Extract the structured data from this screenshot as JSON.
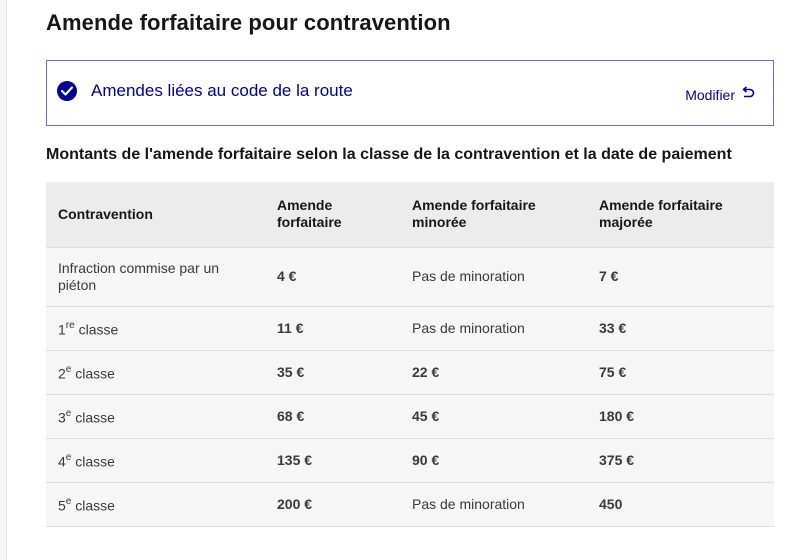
{
  "page": {
    "title": "Amende forfaitaire pour contravention"
  },
  "selection": {
    "label": "Amendes liées au code de la route",
    "modify_label": "Modifier",
    "check_icon": "check-circle-icon",
    "undo_icon": "undo-arrow-icon"
  },
  "table": {
    "caption": "Montants de l'amende forfaitaire selon la classe de la contravention et la date de paiement",
    "headers": [
      "Contravention",
      "Amende forfaitaire",
      "Amende forfaitaire minorée",
      "Amende forfaitaire majorée"
    ],
    "rows": [
      {
        "label_main": "Infraction commise par un piéton",
        "label_sup": "",
        "label_rest": "",
        "amende": "4 €",
        "minoree": "Pas de minoration",
        "majoree": "7 €"
      },
      {
        "label_main": "1",
        "label_sup": "re",
        "label_rest": " classe",
        "amende": "11 €",
        "minoree": "Pas de minoration",
        "majoree": "33 €"
      },
      {
        "label_main": "2",
        "label_sup": "e",
        "label_rest": " classe",
        "amende": "35 €",
        "minoree": "22 €",
        "majoree": "75 €"
      },
      {
        "label_main": "3",
        "label_sup": "e",
        "label_rest": " classe",
        "amende": "68 €",
        "minoree": "45 €",
        "majoree": "180 €"
      },
      {
        "label_main": "4",
        "label_sup": "e",
        "label_rest": " classe",
        "amende": "135 €",
        "minoree": "90 €",
        "majoree": "375 €"
      },
      {
        "label_main": "5",
        "label_sup": "e",
        "label_rest": " classe",
        "amende": "200 €",
        "minoree": "Pas de minoration",
        "majoree": "450"
      }
    ]
  },
  "colors": {
    "accent": "#000091",
    "border_accent": "#6a6af4",
    "header_bg": "#ececec",
    "row_bg": "#f6f6f6"
  }
}
